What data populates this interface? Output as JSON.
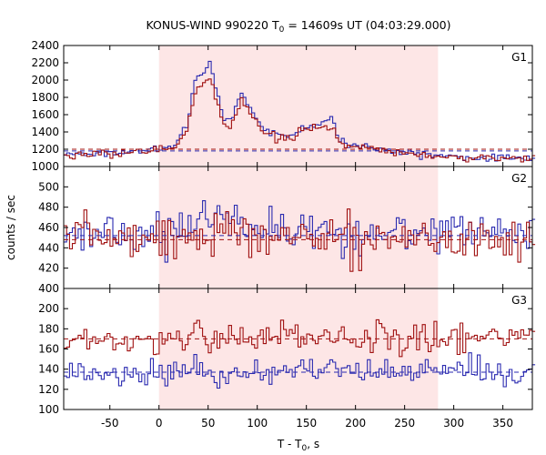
{
  "chart_data": {
    "type": "line",
    "title_main": "KONUS-WIND 990220 T",
    "title_sub": "0",
    "title_rest": " = 14609s UT (04:03:29.000)",
    "xlabel_main": "T - T",
    "xlabel_sub": "0",
    "xlabel_rest": ", s",
    "ylabel": "counts / sec",
    "xlim": [
      -97,
      380
    ],
    "x_ticks": [
      -50,
      0,
      50,
      100,
      150,
      200,
      250,
      300,
      350
    ],
    "shaded_interval": [
      0,
      284
    ],
    "bin_s": 2.944,
    "colors": {
      "series_a": "#a01010",
      "series_b": "#2a2ab0",
      "shade": "#fde6e6",
      "fit_b": "#5aaeea",
      "fit_a": "#ee9aa0"
    },
    "panels": [
      {
        "name": "G1",
        "ylim": [
          1000,
          2400
        ],
        "y_ticks": [
          1000,
          1200,
          1400,
          1600,
          1800,
          2000,
          2200,
          2400
        ],
        "background_a": 1200,
        "background_b": 1180,
        "series_a_knots": [
          [
            -97,
            1130
          ],
          [
            -75,
            1140
          ],
          [
            -50,
            1150
          ],
          [
            -25,
            1160
          ],
          [
            0,
            1200
          ],
          [
            15,
            1215
          ],
          [
            28,
            1400
          ],
          [
            38,
            1900
          ],
          [
            45,
            1960
          ],
          [
            52,
            2050
          ],
          [
            58,
            1800
          ],
          [
            66,
            1470
          ],
          [
            72,
            1460
          ],
          [
            80,
            1640
          ],
          [
            84,
            1760
          ],
          [
            89,
            1680
          ],
          [
            96,
            1560
          ],
          [
            106,
            1390
          ],
          [
            116,
            1360
          ],
          [
            126,
            1330
          ],
          [
            136,
            1340
          ],
          [
            146,
            1420
          ],
          [
            156,
            1430
          ],
          [
            166,
            1440
          ],
          [
            176,
            1460
          ],
          [
            182,
            1300
          ],
          [
            192,
            1240
          ],
          [
            202,
            1220
          ],
          [
            212,
            1220
          ],
          [
            222,
            1200
          ],
          [
            240,
            1160
          ],
          [
            260,
            1140
          ],
          [
            280,
            1120
          ],
          [
            300,
            1100
          ],
          [
            330,
            1095
          ],
          [
            380,
            1090
          ]
        ],
        "series_b_knots": [
          [
            -97,
            1140
          ],
          [
            -75,
            1150
          ],
          [
            -50,
            1160
          ],
          [
            -25,
            1170
          ],
          [
            0,
            1220
          ],
          [
            15,
            1230
          ],
          [
            28,
            1500
          ],
          [
            38,
            2030
          ],
          [
            45,
            2080
          ],
          [
            52,
            2220
          ],
          [
            58,
            1900
          ],
          [
            66,
            1530
          ],
          [
            72,
            1520
          ],
          [
            80,
            1740
          ],
          [
            84,
            1860
          ],
          [
            89,
            1760
          ],
          [
            96,
            1620
          ],
          [
            106,
            1430
          ],
          [
            116,
            1390
          ],
          [
            126,
            1360
          ],
          [
            136,
            1370
          ],
          [
            146,
            1460
          ],
          [
            156,
            1470
          ],
          [
            166,
            1480
          ],
          [
            176,
            1600
          ],
          [
            182,
            1330
          ],
          [
            192,
            1260
          ],
          [
            202,
            1230
          ],
          [
            212,
            1250
          ],
          [
            222,
            1210
          ],
          [
            240,
            1170
          ],
          [
            260,
            1150
          ],
          [
            280,
            1130
          ],
          [
            300,
            1110
          ],
          [
            330,
            1100
          ],
          [
            380,
            1095
          ]
        ],
        "noise_a": 22,
        "noise_b": 20
      },
      {
        "name": "G2",
        "ylim": [
          400,
          520
        ],
        "y_ticks": [
          400,
          420,
          440,
          460,
          480,
          500
        ],
        "background_a": 448,
        "background_b": 452,
        "series_a_knots": [
          [
            -97,
            452
          ],
          [
            0,
            451
          ],
          [
            30,
            452
          ],
          [
            60,
            458
          ],
          [
            90,
            452
          ],
          [
            150,
            450
          ],
          [
            200,
            450
          ],
          [
            284,
            448
          ],
          [
            380,
            448
          ]
        ],
        "series_b_knots": [
          [
            -97,
            454
          ],
          [
            0,
            454
          ],
          [
            30,
            462
          ],
          [
            50,
            474
          ],
          [
            70,
            470
          ],
          [
            90,
            462
          ],
          [
            130,
            458
          ],
          [
            200,
            455
          ],
          [
            284,
            455
          ],
          [
            380,
            456
          ]
        ],
        "noise_a": 10,
        "noise_b": 10
      },
      {
        "name": "G3",
        "ylim": [
          100,
          220
        ],
        "y_ticks": [
          100,
          120,
          140,
          160,
          180,
          200
        ],
        "background_a": 170,
        "background_b": 137,
        "series_a_knots": [
          [
            -97,
            170
          ],
          [
            380,
            172
          ]
        ],
        "series_b_knots": [
          [
            -97,
            136
          ],
          [
            380,
            138
          ]
        ],
        "noise_a": 8,
        "noise_b": 7
      }
    ]
  }
}
